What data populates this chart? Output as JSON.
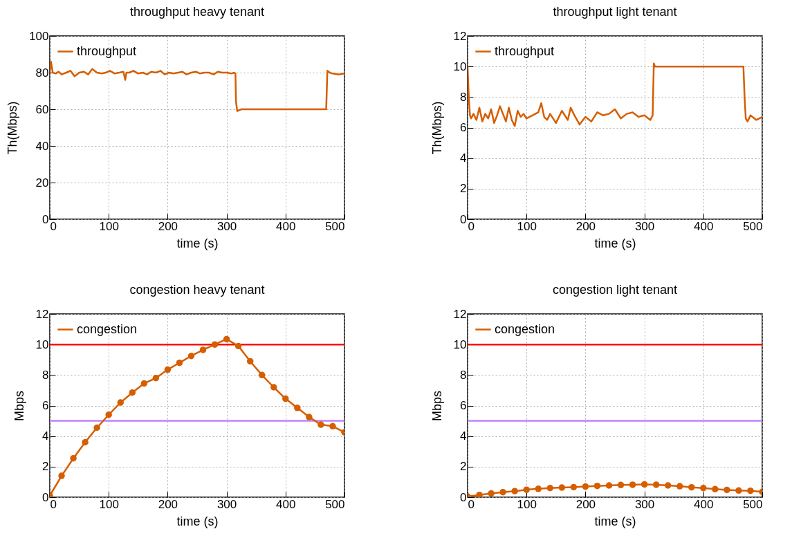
{
  "chart_data": [
    {
      "type": "line",
      "title": "throughput heavy tenant",
      "xlabel": "time (s)",
      "ylabel": "Th(Mbps)",
      "xlim": [
        0,
        500
      ],
      "xticks": [
        0,
        100,
        200,
        300,
        400,
        500
      ],
      "ylim": [
        0,
        100
      ],
      "yticks": [
        0,
        20,
        40,
        60,
        80,
        100
      ],
      "grid": true,
      "legend": "top left",
      "marker": "none",
      "line_style": "solid",
      "series": [
        {
          "name": "throughput",
          "color": "#d55e00",
          "x": [
            0,
            2,
            5,
            10,
            15,
            20,
            28,
            35,
            42,
            50,
            58,
            65,
            72,
            80,
            88,
            95,
            102,
            110,
            118,
            125,
            128,
            130,
            135,
            142,
            150,
            158,
            165,
            172,
            180,
            188,
            195,
            202,
            210,
            218,
            225,
            232,
            240,
            248,
            255,
            262,
            270,
            278,
            285,
            292,
            300,
            308,
            313,
            315,
            316,
            318,
            325,
            340,
            360,
            380,
            400,
            420,
            440,
            460,
            468,
            469,
            471,
            475,
            480,
            490,
            500
          ],
          "values": [
            80,
            86,
            80,
            79.5,
            80.5,
            79,
            80,
            81,
            78,
            80,
            80.5,
            79,
            82,
            80,
            79.5,
            80,
            81,
            79.5,
            80,
            80.5,
            76,
            80,
            80,
            81,
            79.5,
            80,
            79,
            80.5,
            80,
            81,
            79,
            80,
            79.5,
            80,
            80.5,
            79,
            80,
            80.5,
            79.5,
            80,
            80,
            79,
            80.5,
            80,
            80,
            79.5,
            80,
            79.5,
            64,
            59,
            60,
            60,
            60,
            60,
            60,
            60,
            60,
            60,
            60,
            60,
            81,
            80,
            79.5,
            79,
            79.5
          ]
        }
      ]
    },
    {
      "type": "line",
      "title": "throughput light tenant",
      "xlabel": "time (s)",
      "ylabel": "Th(Mbps)",
      "xlim": [
        0,
        500
      ],
      "xticks": [
        0,
        100,
        200,
        300,
        400,
        500
      ],
      "ylim": [
        0,
        12
      ],
      "yticks": [
        0,
        2,
        4,
        6,
        8,
        10,
        12
      ],
      "grid": true,
      "legend": "top left",
      "marker": "none",
      "line_style": "solid",
      "series": [
        {
          "name": "throughput",
          "color": "#d55e00",
          "x": [
            0,
            2,
            4,
            6,
            10,
            15,
            20,
            25,
            30,
            35,
            40,
            45,
            50,
            55,
            60,
            65,
            70,
            75,
            80,
            85,
            90,
            95,
            100,
            110,
            120,
            125,
            130,
            135,
            140,
            150,
            160,
            170,
            175,
            180,
            190,
            200,
            210,
            220,
            230,
            240,
            250,
            260,
            270,
            280,
            290,
            300,
            310,
            314,
            316,
            318,
            330,
            360,
            400,
            440,
            468,
            470,
            472,
            475,
            480,
            490,
            500
          ],
          "values": [
            10,
            8,
            6.8,
            6.6,
            6.9,
            6.5,
            7.3,
            6.4,
            6.9,
            6.6,
            7.2,
            6.3,
            6.8,
            7.4,
            6.9,
            6.4,
            7.3,
            6.5,
            6.1,
            7.1,
            6.7,
            6.9,
            6.6,
            6.8,
            7.0,
            7.6,
            6.7,
            6.5,
            6.9,
            6.3,
            7.1,
            6.5,
            7.3,
            6.9,
            6.2,
            6.7,
            6.4,
            7.0,
            6.8,
            6.9,
            7.2,
            6.6,
            6.9,
            7.0,
            6.7,
            6.8,
            6.5,
            6.8,
            10.2,
            10,
            10,
            10,
            10,
            10,
            10,
            8,
            6.6,
            6.4,
            6.8,
            6.5,
            6.7
          ]
        }
      ]
    },
    {
      "type": "line",
      "title": "congestion heavy tenant",
      "xlabel": "time (s)",
      "ylabel": "Mbps",
      "xlim": [
        0,
        500
      ],
      "xticks": [
        0,
        100,
        200,
        300,
        400,
        500
      ],
      "ylim": [
        0,
        12
      ],
      "yticks": [
        0,
        2,
        4,
        6,
        8,
        10,
        12
      ],
      "grid": true,
      "legend": "top left",
      "marker": "circle",
      "line_style": "solid",
      "ref_lines": [
        {
          "axis": "y",
          "value": 10,
          "color": "#ff0000"
        },
        {
          "axis": "y",
          "value": 5,
          "color": "#c080ff"
        }
      ],
      "series": [
        {
          "name": "congestion",
          "color": "#d55e00",
          "x": [
            0,
            20,
            40,
            60,
            80,
            100,
            120,
            140,
            160,
            180,
            200,
            220,
            240,
            260,
            280,
            300,
            320,
            340,
            360,
            380,
            400,
            420,
            440,
            460,
            480,
            500
          ],
          "values": [
            0.1,
            1.4,
            2.55,
            3.6,
            4.55,
            5.4,
            6.2,
            6.85,
            7.45,
            7.8,
            8.35,
            8.8,
            9.25,
            9.65,
            10.0,
            10.35,
            9.9,
            8.9,
            8.0,
            7.2,
            6.45,
            5.85,
            5.25,
            4.75,
            4.65,
            4.25
          ]
        }
      ]
    },
    {
      "type": "line",
      "title": "congestion light tenant",
      "xlabel": "time (s)",
      "ylabel": "Mbps",
      "xlim": [
        0,
        500
      ],
      "xticks": [
        0,
        100,
        200,
        300,
        400,
        500
      ],
      "ylim": [
        0,
        12
      ],
      "yticks": [
        0,
        2,
        4,
        6,
        8,
        10,
        12
      ],
      "grid": true,
      "legend": "top left",
      "marker": "circle",
      "line_style": "solid",
      "ref_lines": [
        {
          "axis": "y",
          "value": 10,
          "color": "#ff0000"
        },
        {
          "axis": "y",
          "value": 5,
          "color": "#c080ff"
        }
      ],
      "series": [
        {
          "name": "congestion",
          "color": "#d55e00",
          "x": [
            0,
            20,
            40,
            60,
            80,
            100,
            120,
            140,
            160,
            180,
            200,
            220,
            240,
            260,
            280,
            300,
            320,
            340,
            360,
            380,
            400,
            420,
            440,
            460,
            480,
            500
          ],
          "values": [
            0.05,
            0.15,
            0.25,
            0.33,
            0.4,
            0.49,
            0.55,
            0.6,
            0.63,
            0.66,
            0.7,
            0.74,
            0.77,
            0.8,
            0.82,
            0.84,
            0.82,
            0.77,
            0.72,
            0.65,
            0.6,
            0.53,
            0.48,
            0.44,
            0.42,
            0.35
          ]
        }
      ]
    }
  ]
}
